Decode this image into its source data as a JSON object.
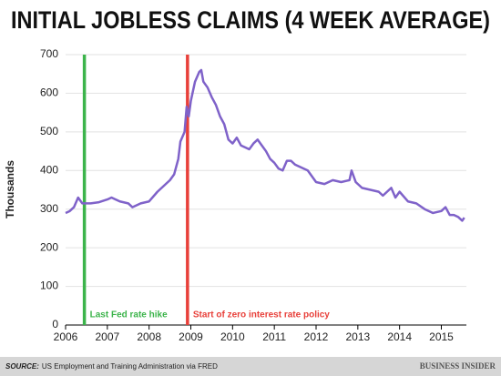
{
  "chart_data": {
    "type": "line",
    "title": "INITIAL JOBLESS CLAIMS (4 WEEK AVERAGE)",
    "y_label": "Thousands",
    "x": [
      2006.0,
      2006.1,
      2006.2,
      2006.3,
      2006.4,
      2006.6,
      2006.8,
      2007.0,
      2007.1,
      2007.3,
      2007.5,
      2007.6,
      2007.8,
      2008.0,
      2008.2,
      2008.3,
      2008.4,
      2008.5,
      2008.6,
      2008.7,
      2008.75,
      2008.85,
      2008.9,
      2008.95,
      2009.0,
      2009.1,
      2009.2,
      2009.25,
      2009.3,
      2009.4,
      2009.5,
      2009.6,
      2009.7,
      2009.8,
      2009.9,
      2010.0,
      2010.1,
      2010.2,
      2010.3,
      2010.4,
      2010.5,
      2010.6,
      2010.7,
      2010.8,
      2010.9,
      2011.0,
      2011.1,
      2011.2,
      2011.3,
      2011.4,
      2011.5,
      2011.6,
      2011.7,
      2011.8,
      2011.9,
      2012.0,
      2012.2,
      2012.4,
      2012.6,
      2012.8,
      2012.85,
      2012.95,
      2013.1,
      2013.3,
      2013.5,
      2013.6,
      2013.8,
      2013.9,
      2014.0,
      2014.2,
      2014.4,
      2014.6,
      2014.8,
      2015.0,
      2015.1,
      2015.2,
      2015.3,
      2015.4,
      2015.5,
      2015.55
    ],
    "series": [
      {
        "name": "Initial jobless claims",
        "color": "#7f62c9",
        "values": [
          290,
          295,
          305,
          330,
          315,
          315,
          318,
          325,
          330,
          320,
          315,
          305,
          315,
          320,
          345,
          355,
          365,
          375,
          390,
          430,
          475,
          500,
          565,
          540,
          580,
          630,
          655,
          660,
          630,
          615,
          590,
          570,
          540,
          520,
          480,
          470,
          485,
          465,
          460,
          455,
          470,
          480,
          465,
          450,
          430,
          420,
          405,
          400,
          425,
          425,
          415,
          410,
          405,
          400,
          385,
          370,
          365,
          375,
          370,
          375,
          400,
          370,
          355,
          350,
          345,
          335,
          355,
          330,
          345,
          320,
          315,
          300,
          290,
          295,
          305,
          285,
          285,
          280,
          270,
          278
        ]
      }
    ],
    "annotations": [
      {
        "x": 2006.45,
        "label": "Last Fed rate hike",
        "color": "#3cb44b"
      },
      {
        "x": 2008.92,
        "label": "Start of zero interest rate policy",
        "color": "#e8403a"
      }
    ],
    "xlim": [
      2006,
      2015.6
    ],
    "xticks": [
      2006,
      2007,
      2008,
      2009,
      2010,
      2011,
      2012,
      2013,
      2014,
      2015
    ],
    "ylim": [
      0,
      700
    ],
    "yticks": [
      0,
      100,
      200,
      300,
      400,
      500,
      600,
      700
    ],
    "grid": true,
    "source_label": "SOURCE:",
    "source_text": "US Employment and Training Administration via FRED",
    "brand": "BUSINESS INSIDER"
  }
}
